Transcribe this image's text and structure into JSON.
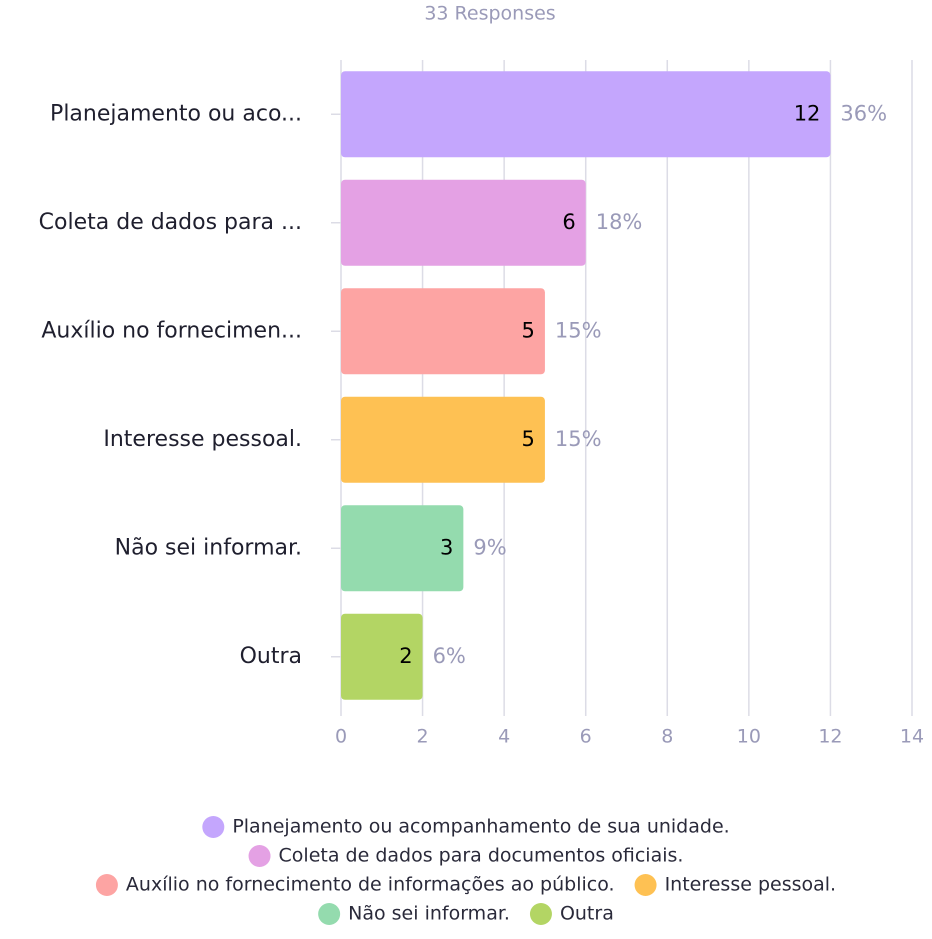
{
  "chart_data": {
    "type": "barh",
    "subtitle": "33 Responses",
    "categories": [
      "Planejamento ou aco...",
      "Coleta de dados para ...",
      "Auxílio no fornecimen...",
      "Interesse pessoal.",
      "Não sei informar.",
      "Outra"
    ],
    "legend_labels": [
      "Planejamento ou acompanhamento de sua unidade.",
      "Coleta de dados para documentos oficiais.",
      "Auxílio no fornecimento de informações ao público.",
      "Interesse pessoal.",
      "Não sei informar.",
      "Outra"
    ],
    "values": [
      12,
      6,
      5,
      5,
      3,
      2
    ],
    "percent_labels": [
      "36%",
      "18%",
      "15%",
      "15%",
      "9%",
      "6%"
    ],
    "colors": [
      "#c4a6fd",
      "#e4a1e4",
      "#fda4a3",
      "#fec153",
      "#94dbae",
      "#b3d564"
    ],
    "xlim": [
      0,
      14
    ],
    "xticks": [
      0,
      2,
      4,
      6,
      8,
      10,
      12,
      14
    ],
    "grid": true
  }
}
